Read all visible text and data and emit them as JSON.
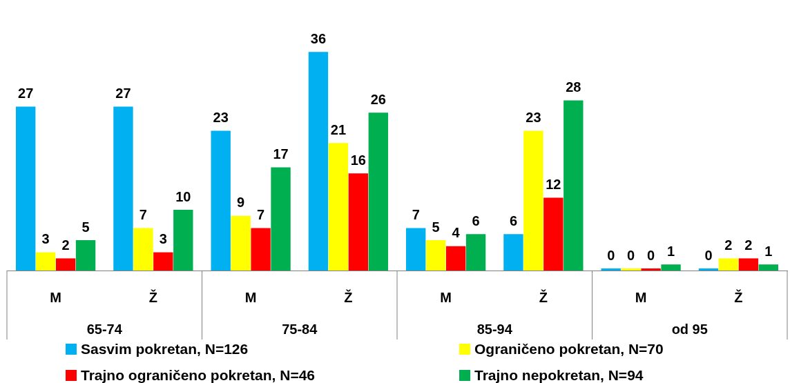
{
  "chart_data": {
    "type": "bar",
    "categories": [
      "M",
      "Ž",
      "M",
      "Ž",
      "M",
      "Ž",
      "M",
      "Ž"
    ],
    "annotations": [
      "65-74",
      "75-84",
      "85-94",
      "od 95"
    ],
    "series": [
      {
        "name": "Sasvim pokretan, N=126",
        "color": "#00b0f0",
        "values": [
          27,
          27,
          23,
          36,
          7,
          6,
          0,
          0
        ]
      },
      {
        "name": "Ograničeno pokretan, N=70",
        "color": "#ffff00",
        "values": [
          3,
          7,
          9,
          21,
          5,
          23,
          0,
          2
        ]
      },
      {
        "name": "Trajno ograničeno pokretan, N=46",
        "color": "#ff0000",
        "values": [
          2,
          3,
          7,
          16,
          4,
          12,
          0,
          2
        ]
      },
      {
        "name": "Trajno nepokretan, N=94",
        "color": "#00b050",
        "values": [
          5,
          10,
          17,
          26,
          6,
          28,
          1,
          1
        ]
      }
    ],
    "data_labels": true,
    "legend": "bottom",
    "grid": false
  }
}
